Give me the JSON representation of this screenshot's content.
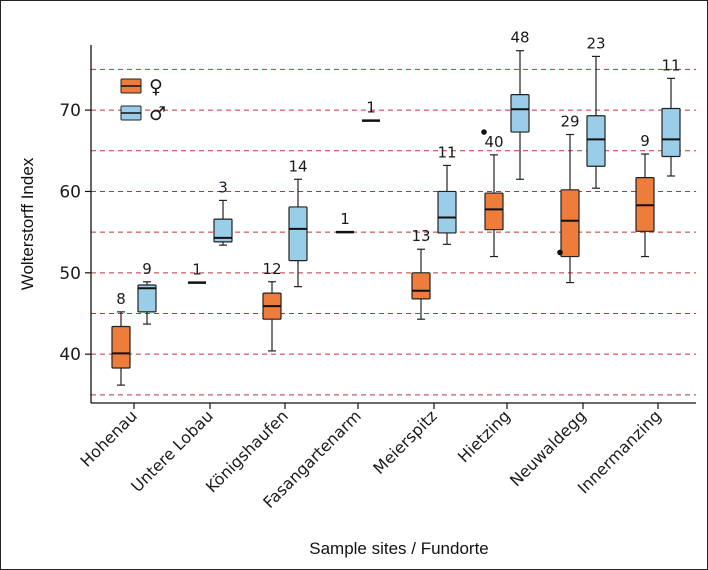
{
  "chart_data": {
    "type": "boxplot",
    "xlabel": "Sample sites / Fundorte",
    "ylabel": "Wolterstorff Index",
    "ylim": [
      34,
      78
    ],
    "yticks": [
      40,
      50,
      60,
      70
    ],
    "reference_lines": [
      35,
      40,
      45,
      50,
      55,
      60,
      65,
      70,
      75
    ],
    "grid": "dashed horizontal reference lines every 5 units",
    "legend": {
      "position": "top-left",
      "entries": [
        {
          "label": "♀",
          "color": "#EE7D3B"
        },
        {
          "label": "♂",
          "color": "#9ACDE8"
        }
      ]
    },
    "categories": [
      "Hohenau",
      "Untere Lobau",
      "Königshaufen",
      "Fasangartenarm",
      "Meierspitz",
      "Hietzing",
      "Neuwaldegg",
      "Innermanzing"
    ],
    "series": [
      {
        "name": "♀",
        "color": "#EE7D3B",
        "boxes": [
          {
            "category": "Hohenau",
            "n": "8",
            "whisker_low": 36.2,
            "q1": 38.3,
            "median": 40.1,
            "q3": 43.4,
            "whisker_high": 45.2,
            "outliers": []
          },
          {
            "category": "Untere Lobau",
            "n": "1",
            "single": 48.8
          },
          {
            "category": "Königshaufen",
            "n": "12",
            "whisker_low": 40.4,
            "q1": 44.3,
            "median": 45.9,
            "q3": 47.5,
            "whisker_high": 48.9,
            "outliers": []
          },
          {
            "category": "Fasangartenarm",
            "n": "1",
            "single": 55.0
          },
          {
            "category": "Meierspitz",
            "n": "13",
            "whisker_low": 44.3,
            "q1": 46.8,
            "median": 47.8,
            "q3": 50.0,
            "whisker_high": 52.9,
            "outliers": []
          },
          {
            "category": "Hietzing",
            "n": "40",
            "whisker_low": 52.0,
            "q1": 55.3,
            "median": 57.8,
            "q3": 59.8,
            "whisker_high": 64.5,
            "outliers": [
              67.3
            ]
          },
          {
            "category": "Neuwaldegg",
            "n": "29",
            "whisker_low": 48.8,
            "q1": 52.0,
            "median": 56.4,
            "q3": 60.2,
            "whisker_high": 67.0,
            "outliers": [
              52.5
            ]
          },
          {
            "category": "Innermanzing",
            "n": "9",
            "whisker_low": 52.0,
            "q1": 55.1,
            "median": 58.3,
            "q3": 61.7,
            "whisker_high": 64.6,
            "outliers": []
          }
        ]
      },
      {
        "name": "♂",
        "color": "#9ACDE8",
        "boxes": [
          {
            "category": "Hohenau",
            "n": "9",
            "whisker_low": 43.7,
            "q1": 45.2,
            "median": 48.1,
            "q3": 48.5,
            "whisker_high": 48.9,
            "outliers": []
          },
          {
            "category": "Untere Lobau",
            "n": "3",
            "whisker_low": 53.4,
            "q1": 53.8,
            "median": 54.3,
            "q3": 56.6,
            "whisker_high": 58.9,
            "outliers": []
          },
          {
            "category": "Königshaufen",
            "n": "14",
            "whisker_low": 48.3,
            "q1": 51.5,
            "median": 55.4,
            "q3": 58.1,
            "whisker_high": 61.5,
            "outliers": []
          },
          {
            "category": "Fasangartenarm",
            "n": "1",
            "single": 68.7
          },
          {
            "category": "Meierspitz",
            "n": "11",
            "whisker_low": 53.5,
            "q1": 54.9,
            "median": 56.8,
            "q3": 60.0,
            "whisker_high": 63.2,
            "outliers": []
          },
          {
            "category": "Hietzing",
            "n": "48",
            "whisker_low": 61.5,
            "q1": 67.3,
            "median": 70.1,
            "q3": 71.9,
            "whisker_high": 77.3,
            "outliers": []
          },
          {
            "category": "Neuwaldegg",
            "n": "23",
            "whisker_low": 60.4,
            "q1": 63.1,
            "median": 66.4,
            "q3": 69.3,
            "whisker_high": 76.6,
            "outliers": []
          },
          {
            "category": "Innermanzing",
            "n": "11",
            "whisker_low": 61.9,
            "q1": 64.3,
            "median": 66.4,
            "q3": 70.2,
            "whisker_high": 73.9,
            "outliers": []
          }
        ]
      }
    ]
  }
}
